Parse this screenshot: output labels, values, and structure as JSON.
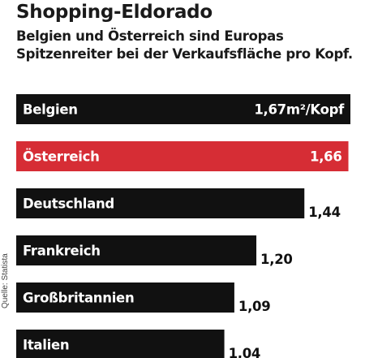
{
  "title": "Shopping-Eldorado",
  "subtitle": "Belgien und Österreich sind Europas Spitzenreiter bei der Verkaufsfläche pro Kopf.",
  "source": "Quelle: Statista",
  "colors": {
    "bar": "#111111",
    "highlight": "#d62d35",
    "text_on_bar": "#ffffff",
    "value_outside": "#111111"
  },
  "chart_data": {
    "type": "bar",
    "orientation": "horizontal",
    "title": "Shopping-Eldorado",
    "subtitle": "Belgien und Österreich sind Europas Spitzenreiter bei der Verkaufsfläche pro Kopf.",
    "categories": [
      "Belgien",
      "Österreich",
      "Deutschland",
      "Frankreich",
      "Großbritannien",
      "Italien"
    ],
    "values": [
      1.67,
      1.66,
      1.44,
      1.2,
      1.09,
      1.04
    ],
    "value_labels": [
      "1,67m²/Kopf",
      "1,66",
      "1,44",
      "1,20",
      "1,09",
      "1,04"
    ],
    "highlight": "Österreich",
    "xlim": [
      0,
      1.67
    ]
  }
}
